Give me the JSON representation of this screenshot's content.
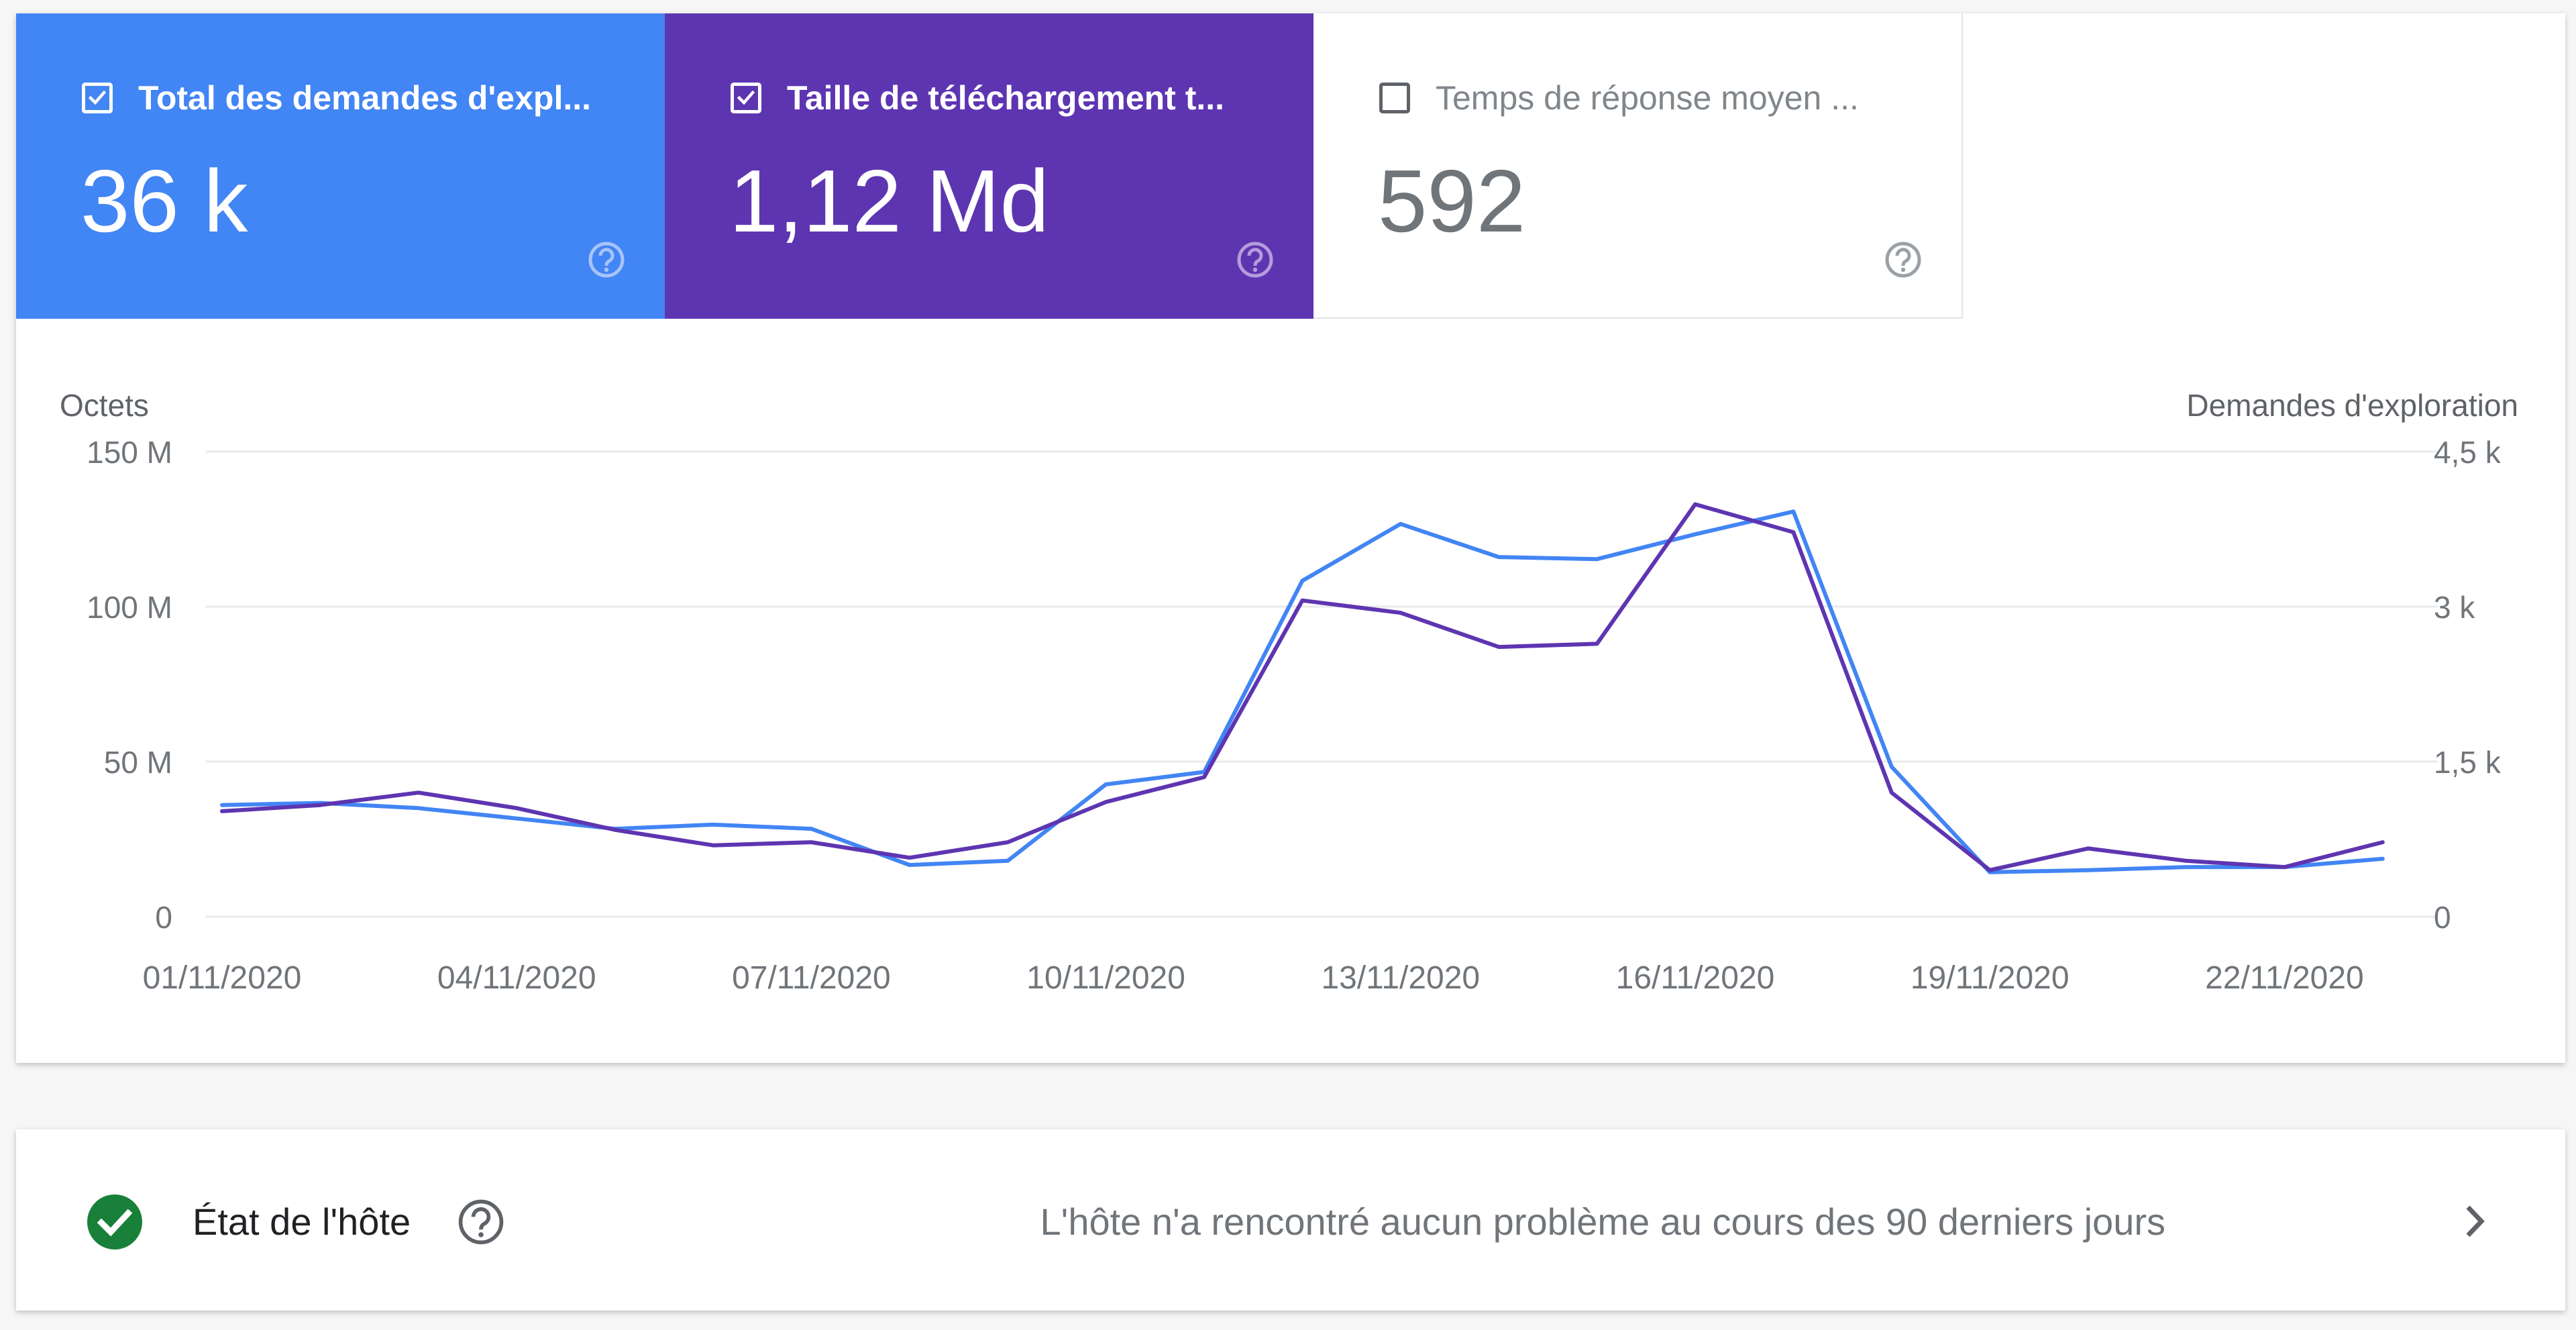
{
  "tiles": [
    {
      "label": "Total des demandes d'expl...",
      "value": "36 k",
      "checked": true,
      "color": "#4285f4"
    },
    {
      "label": "Taille de téléchargement t...",
      "value": "1,12 Md",
      "checked": true,
      "color": "#5e35b1"
    },
    {
      "label": "Temps de réponse moyen ...",
      "value": "592",
      "checked": false,
      "color": "#ffffff"
    }
  ],
  "chart_data": {
    "type": "line",
    "left_axis": {
      "label": "Octets",
      "ticks": [
        "0",
        "50 M",
        "100 M",
        "150 M"
      ],
      "range": [
        0,
        150
      ]
    },
    "right_axis": {
      "label": "Demandes d'exploration",
      "ticks": [
        "0",
        "1,5 k",
        "3 k",
        "4,5 k"
      ],
      "range": [
        0,
        4500
      ]
    },
    "x_tick_labels": [
      "01/11/2020",
      "04/11/2020",
      "07/11/2020",
      "10/11/2020",
      "13/11/2020",
      "16/11/2020",
      "19/11/2020",
      "22/11/2020"
    ],
    "x": [
      "01/11/2020",
      "02/11/2020",
      "03/11/2020",
      "04/11/2020",
      "05/11/2020",
      "06/11/2020",
      "07/11/2020",
      "08/11/2020",
      "09/11/2020",
      "10/11/2020",
      "11/11/2020",
      "12/11/2020",
      "13/11/2020",
      "14/11/2020",
      "15/11/2020",
      "16/11/2020",
      "17/11/2020",
      "18/11/2020",
      "19/11/2020",
      "20/11/2020",
      "21/11/2020",
      "22/11/2020",
      "23/11/2020"
    ],
    "series": [
      {
        "axis": "right",
        "color": "#4285f4",
        "values": [
          1080,
          1100,
          1050,
          950,
          850,
          890,
          850,
          500,
          540,
          1280,
          1400,
          3250,
          3800,
          3480,
          3460,
          3700,
          3920,
          1450,
          430,
          450,
          480,
          480,
          560
        ]
      },
      {
        "axis": "left",
        "color": "#5e35b1",
        "values": [
          34,
          36,
          40,
          35,
          28,
          23,
          24,
          19,
          24,
          37,
          45,
          102,
          98,
          87,
          88,
          133,
          124,
          40,
          15,
          22,
          18,
          16,
          24
        ]
      }
    ],
    "grid": true
  },
  "host": {
    "title": "État de l'hôte",
    "message": "L'hôte n'a rencontré aucun problème au cours des 90 derniers jours"
  }
}
